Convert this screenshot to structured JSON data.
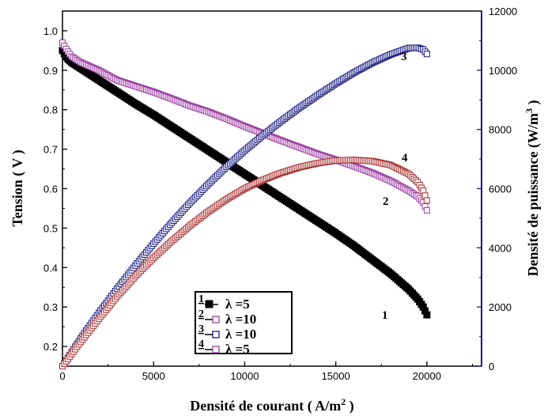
{
  "chart_data": {
    "type": "line",
    "xlabel": "Densité de courant ( A/m2 )",
    "xlabel_base": "Densité de courant ( A/m",
    "xlabel_sup": "2",
    "xlabel_end": " )",
    "ylabel_left": "Tension ( V )",
    "ylabel_right": "Densité de puissance (W/m3 )",
    "ylabel_right_base": "Densité de puissance (W/m",
    "ylabel_right_sup": "3",
    "ylabel_right_end": " )",
    "xlim": [
      0,
      23000
    ],
    "ylim_left": [
      0.15,
      1.05
    ],
    "ylim_right": [
      0,
      12000
    ],
    "x_ticks": [
      0,
      5000,
      10000,
      15000,
      20000
    ],
    "y_left_ticks": [
      0.2,
      0.3,
      0.4,
      0.5,
      0.6,
      0.7,
      0.8,
      0.9,
      1.0
    ],
    "y_left_tick_labels": [
      "0.2",
      "0.3",
      "0.4",
      "0.5",
      "0.6",
      "0.7",
      "0.8",
      "0.9",
      "1.0"
    ],
    "y_right_ticks": [
      0,
      2000,
      4000,
      6000,
      8000,
      10000,
      12000
    ],
    "grid": false,
    "legend_position": "bottom-center",
    "colors": {
      "axis_left": "#000000",
      "axis_right": "#1a1a80",
      "series1": "#000000",
      "series2": "#9b3fa0",
      "series3": "#1a1a80",
      "series4": "#a83232"
    },
    "series": [
      {
        "name": "λ =5",
        "label": "1",
        "axis": "left",
        "marker": "filled-square",
        "x": [
          0,
          250,
          500,
          1000,
          1500,
          2000,
          3000,
          4000,
          5000,
          6000,
          7000,
          8000,
          9000,
          10000,
          11000,
          12000,
          13000,
          14000,
          15000,
          16000,
          17000,
          18000,
          19000,
          19500,
          19800,
          20000
        ],
        "y": [
          0.95,
          0.93,
          0.92,
          0.905,
          0.89,
          0.875,
          0.845,
          0.815,
          0.787,
          0.757,
          0.727,
          0.697,
          0.667,
          0.637,
          0.607,
          0.577,
          0.547,
          0.517,
          0.487,
          0.455,
          0.42,
          0.385,
          0.345,
          0.32,
          0.3,
          0.28
        ]
      },
      {
        "name": "λ =10",
        "label": "2",
        "axis": "left",
        "marker": "open-square",
        "x": [
          0,
          250,
          500,
          1000,
          1500,
          2000,
          3000,
          4000,
          5000,
          6000,
          7000,
          8000,
          9000,
          10000,
          11000,
          12000,
          13000,
          14000,
          15000,
          16000,
          17000,
          18000,
          19000,
          19500,
          19800,
          20000
        ],
        "y": [
          0.97,
          0.95,
          0.935,
          0.92,
          0.91,
          0.9,
          0.875,
          0.86,
          0.845,
          0.828,
          0.81,
          0.795,
          0.777,
          0.758,
          0.74,
          0.722,
          0.705,
          0.688,
          0.673,
          0.657,
          0.64,
          0.62,
          0.595,
          0.58,
          0.565,
          0.545
        ]
      },
      {
        "name": "λ =10",
        "label": "3",
        "axis": "right",
        "marker": "open-square",
        "x": [
          0,
          1000,
          2000,
          3000,
          4000,
          5000,
          6000,
          7000,
          8000,
          9000,
          10000,
          11000,
          12000,
          13000,
          14000,
          15000,
          16000,
          17000,
          18000,
          19000,
          19500,
          19800,
          20000
        ],
        "y": [
          0,
          940,
          1800,
          2620,
          3400,
          4140,
          4850,
          5520,
          6150,
          6740,
          7290,
          7800,
          8280,
          8730,
          9150,
          9550,
          9920,
          10250,
          10530,
          10750,
          10760,
          10700,
          10550
        ]
      },
      {
        "name": "λ =5",
        "label": "4",
        "axis": "right",
        "marker": "open-square",
        "x": [
          0,
          1000,
          2000,
          3000,
          4000,
          5000,
          6000,
          7000,
          8000,
          9000,
          10000,
          11000,
          12000,
          13000,
          14000,
          15000,
          16000,
          17000,
          18000,
          19000,
          19500,
          19800,
          20000
        ],
        "y": [
          0,
          820,
          1600,
          2360,
          3040,
          3660,
          4230,
          4750,
          5220,
          5640,
          6000,
          6290,
          6530,
          6720,
          6860,
          6950,
          6970,
          6930,
          6800,
          6500,
          6220,
          5930,
          5600
        ]
      }
    ],
    "legend": [
      {
        "num": "1",
        "text": "λ =5",
        "marker": "filled-square"
      },
      {
        "num": "2",
        "text": "λ =10",
        "marker": "open-square"
      },
      {
        "num": "3",
        "text": "λ =10",
        "marker": "open-square"
      },
      {
        "num": "4",
        "text": "λ =5",
        "marker": "open-square"
      }
    ]
  }
}
